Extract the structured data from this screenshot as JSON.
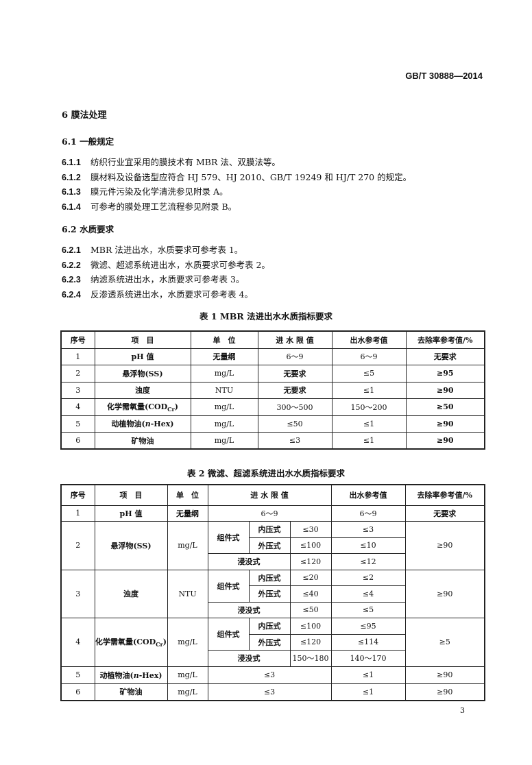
{
  "header": {
    "standard": "GB/T 30888—2014"
  },
  "section": {
    "title": "6  膜法处理"
  },
  "s61": {
    "title": "6.1  一般规定",
    "items": [
      {
        "num": "6.1.1",
        "text": "纺织行业宜采用的膜技术有 MBR 法、双膜法等。"
      },
      {
        "num": "6.1.2",
        "text": "膜材料及设备选型应符合 HJ 579、HJ 2010、GB/T 19249 和 HJ/T 270 的规定。"
      },
      {
        "num": "6.1.3",
        "text": "膜元件污染及化学清洗参见附录 A。"
      },
      {
        "num": "6.1.4",
        "text": "可参考的膜处理工艺流程参见附录 B。"
      }
    ]
  },
  "s62": {
    "title": "6.2  水质要求",
    "items": [
      {
        "num": "6.2.1",
        "text": "MBR 法进出水，水质要求可参考表 1。"
      },
      {
        "num": "6.2.2",
        "text": "微滤、超滤系统进出水，水质要求可参考表 2。"
      },
      {
        "num": "6.2.3",
        "text": "纳滤系统进出水，水质要求可参考表 3。"
      },
      {
        "num": "6.2.4",
        "text": "反渗透系统进出水，水质要求可参考表 4。"
      }
    ]
  },
  "table1": {
    "caption": "表 1  MBR 法进出水水质指标要求",
    "headers": [
      "序号",
      "项　目",
      "单　位",
      "进 水 限 值",
      "出水参考值",
      "去除率参考值/%"
    ],
    "rows": [
      [
        "1",
        "pH 值",
        "无量纲",
        "6～9",
        "6～9",
        "无要求"
      ],
      [
        "2",
        "悬浮物(SS)",
        "mg/L",
        "无要求",
        "≤5",
        "≥95"
      ],
      [
        "3",
        "浊度",
        "NTU",
        "无要求",
        "≤1",
        "≥90"
      ],
      [
        "4",
        "化学需氧量(CODCr)",
        "mg/L",
        "300～500",
        "150～200",
        "≥50"
      ],
      [
        "5",
        "动植物油(n-Hex)",
        "mg/L",
        "≤50",
        "≤1",
        "≥90"
      ],
      [
        "6",
        "矿物油",
        "mg/L",
        "≤3",
        "≤1",
        "≥90"
      ]
    ]
  },
  "table2": {
    "caption": "表 2  微滤、超滤系统进出水水质指标要求",
    "headers": [
      "序号",
      "项　目",
      "单　位",
      "进 水 限 值",
      "出水参考值",
      "去除率参考值/%"
    ],
    "labels": {
      "module": "组件式",
      "inner": "内压式",
      "outer": "外压式",
      "immersed": "浸没式"
    },
    "row1": [
      "1",
      "pH 值",
      "无量纲",
      "6～9",
      "6～9",
      "无要求"
    ],
    "groups": [
      {
        "no": "2",
        "item": "悬浮物(SS)",
        "unit": "mg/L",
        "inner_in": "≤30",
        "inner_out": "≤3",
        "outer_in": "≤100",
        "outer_out": "≤10",
        "imm_in": "≤120",
        "imm_out": "≤12",
        "removal": "≥90"
      },
      {
        "no": "3",
        "item": "浊度",
        "unit": "NTU",
        "inner_in": "≤20",
        "inner_out": "≤2",
        "outer_in": "≤40",
        "outer_out": "≤4",
        "imm_in": "≤50",
        "imm_out": "≤5",
        "removal": "≥90"
      },
      {
        "no": "4",
        "item": "化学需氧量(CODCr)",
        "unit": "mg/L",
        "inner_in": "≤100",
        "inner_out": "≤95",
        "outer_in": "≤120",
        "outer_out": "≤114",
        "imm_in": "150～180",
        "imm_out": "140～170",
        "removal": "≥5"
      }
    ],
    "rows_end": [
      [
        "5",
        "动植物油(n-Hex)",
        "mg/L",
        "≤3",
        "≤1",
        "≥90"
      ],
      [
        "6",
        "矿物油",
        "mg/L",
        "≤3",
        "≤1",
        "≥90"
      ]
    ]
  },
  "page_number": "3"
}
